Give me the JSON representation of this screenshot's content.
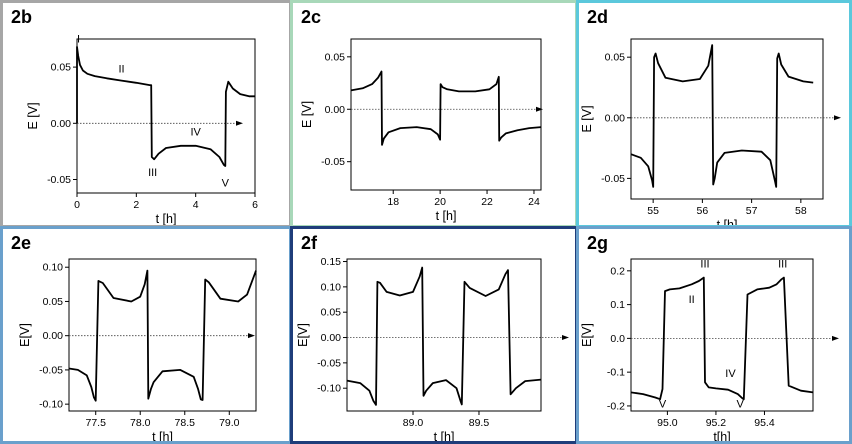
{
  "chart_data": [
    {
      "id": "2b",
      "type": "line",
      "border_color": "#a6a6a6",
      "xlabel": "t [h]",
      "ylabel": "E [V]",
      "xlim": [
        0,
        6
      ],
      "ylim": [
        -0.062,
        0.075
      ],
      "xticks": [
        0,
        2,
        4,
        6
      ],
      "xtick_labels": [
        "0",
        "2",
        "4",
        "6"
      ],
      "yticks": [
        0.05,
        0.0,
        -0.05
      ],
      "ytick_labels": [
        "0.05",
        "0.00",
        "-0.05"
      ],
      "series": [
        {
          "x": [
            0,
            0,
            0.04,
            0.1,
            0.2,
            0.35,
            0.6,
            1,
            1.5,
            2,
            2.45,
            2.5,
            2.52,
            2.6,
            2.75,
            3,
            3.5,
            4,
            4.5,
            4.8,
            4.95,
            5,
            5.02,
            5.1,
            5.25,
            5.5,
            5.8,
            6
          ],
          "y": [
            0,
            0.068,
            0.06,
            0.052,
            0.047,
            0.044,
            0.042,
            0.04,
            0.038,
            0.036,
            0.034,
            0.034,
            -0.03,
            -0.032,
            -0.027,
            -0.022,
            -0.02,
            -0.02,
            -0.023,
            -0.03,
            -0.037,
            -0.038,
            0.028,
            0.037,
            0.031,
            0.026,
            0.024,
            0.024
          ]
        }
      ],
      "annotations": [
        {
          "text": "I",
          "x": 0.05,
          "y": 0.072
        },
        {
          "text": "II",
          "x": 1.5,
          "y": 0.045
        },
        {
          "text": "IV",
          "x": 4.0,
          "y": -0.011
        },
        {
          "text": "III",
          "x": 2.55,
          "y": -0.047
        },
        {
          "text": "V",
          "x": 5.0,
          "y": -0.056
        }
      ]
    },
    {
      "id": "2c",
      "type": "line",
      "border_color": "#a8d8b9",
      "xlabel": "t [h]",
      "ylabel": "E [V]",
      "xlim": [
        16.2,
        24.3
      ],
      "ylim": [
        -0.077,
        0.067
      ],
      "xticks": [
        18,
        20,
        22,
        24
      ],
      "xtick_labels": [
        "18",
        "20",
        "22",
        "24"
      ],
      "yticks": [
        0.05,
        0.0,
        -0.05
      ],
      "ytick_labels": [
        "0.05",
        "0.00",
        "-0.05"
      ],
      "series": [
        {
          "x": [
            16.2,
            16.7,
            17.1,
            17.35,
            17.5,
            17.52,
            17.6,
            17.8,
            18.3,
            19,
            19.6,
            19.9,
            20,
            20.02,
            20.1,
            20.3,
            20.8,
            21.5,
            22.1,
            22.4,
            22.5,
            22.52,
            22.6,
            22.8,
            23.3,
            23.8,
            24.3
          ],
          "y": [
            0.018,
            0.02,
            0.024,
            0.03,
            0.036,
            -0.034,
            -0.028,
            -0.022,
            -0.018,
            -0.017,
            -0.019,
            -0.024,
            -0.029,
            0.024,
            0.021,
            0.019,
            0.017,
            0.017,
            0.019,
            0.024,
            0.031,
            -0.03,
            -0.027,
            -0.023,
            -0.02,
            -0.018,
            -0.017
          ]
        }
      ],
      "annotations": []
    },
    {
      "id": "2d",
      "type": "line",
      "border_color": "#5bc8dc",
      "xlabel": "t [h]",
      "ylabel": "E [V]",
      "xlim": [
        54.55,
        58.45
      ],
      "ylim": [
        -0.067,
        0.065
      ],
      "xticks": [
        55,
        56,
        57,
        58
      ],
      "xtick_labels": [
        "55",
        "56",
        "57",
        "58"
      ],
      "yticks": [
        0.05,
        0.0,
        -0.05
      ],
      "ytick_labels": [
        "0.05",
        "0.00",
        "-0.05"
      ],
      "series": [
        {
          "x": [
            54.55,
            54.75,
            54.9,
            54.98,
            55,
            55.02,
            55.05,
            55.1,
            55.25,
            55.6,
            55.95,
            56.12,
            56.2,
            56.22,
            56.25,
            56.3,
            56.45,
            56.8,
            57.2,
            57.38,
            57.48,
            57.5,
            57.52,
            57.55,
            57.6,
            57.75,
            58.05,
            58.25
          ],
          "y": [
            -0.03,
            -0.033,
            -0.04,
            -0.052,
            -0.057,
            0.05,
            0.053,
            0.045,
            0.033,
            0.03,
            0.032,
            0.043,
            0.06,
            -0.055,
            -0.05,
            -0.037,
            -0.029,
            -0.027,
            -0.028,
            -0.035,
            -0.053,
            -0.057,
            0.049,
            0.053,
            0.044,
            0.034,
            0.03,
            0.029
          ]
        }
      ],
      "annotations": []
    },
    {
      "id": "2e",
      "type": "line",
      "border_color": "#6aa0cc",
      "xlabel": "t [h]",
      "ylabel": "E[V]",
      "xlim": [
        77.2,
        79.3
      ],
      "ylim": [
        -0.11,
        0.112
      ],
      "xticks": [
        77.5,
        78.0,
        78.5,
        79.0
      ],
      "xtick_labels": [
        "77.5",
        "78.0",
        "78.5",
        "79.0"
      ],
      "yticks": [
        0.1,
        0.05,
        0.0,
        -0.05,
        -0.1
      ],
      "ytick_labels": [
        "0.10",
        "0.05",
        "0.00",
        "-0.05",
        "-0.10"
      ],
      "series": [
        {
          "x": [
            77.2,
            77.3,
            77.4,
            77.45,
            77.48,
            77.5,
            77.53,
            77.58,
            77.7,
            77.9,
            78.0,
            78.05,
            78.08,
            78.09,
            78.12,
            78.15,
            78.25,
            78.45,
            78.6,
            78.65,
            78.68,
            78.7,
            78.73,
            78.77,
            78.9,
            79.1,
            79.2,
            79.3
          ],
          "y": [
            -0.048,
            -0.05,
            -0.058,
            -0.075,
            -0.09,
            -0.095,
            0.08,
            0.077,
            0.055,
            0.05,
            0.057,
            0.075,
            0.095,
            -0.092,
            -0.078,
            -0.068,
            -0.052,
            -0.05,
            -0.06,
            -0.078,
            -0.093,
            -0.094,
            0.082,
            0.078,
            0.054,
            0.05,
            0.06,
            0.095
          ]
        }
      ],
      "annotations": []
    },
    {
      "id": "2f",
      "type": "line",
      "border_color": "#1f3d7a",
      "xlabel": "t [h]",
      "ylabel": "E[V]",
      "xlim": [
        88.5,
        89.97
      ],
      "ylim": [
        -0.145,
        0.155
      ],
      "xticks": [
        89.0,
        89.5
      ],
      "xtick_labels": [
        "89.0",
        "89.5"
      ],
      "yticks": [
        0.15,
        0.1,
        0.05,
        0.0,
        -0.05,
        -0.1
      ],
      "ytick_labels": [
        "0.15",
        "0.10",
        "0.05",
        "0.00",
        "-0.05",
        "-0.10"
      ],
      "series": [
        {
          "x": [
            88.5,
            88.6,
            88.67,
            88.7,
            88.72,
            88.73,
            88.75,
            88.8,
            88.9,
            89.0,
            89.05,
            89.07,
            89.08,
            89.1,
            89.15,
            89.25,
            89.33,
            89.36,
            89.37,
            89.39,
            89.43,
            89.55,
            89.65,
            89.7,
            89.72,
            89.74,
            89.78,
            89.85,
            89.97
          ],
          "y": [
            -0.085,
            -0.09,
            -0.105,
            -0.125,
            -0.133,
            0.11,
            0.108,
            0.09,
            0.083,
            0.09,
            0.12,
            0.138,
            -0.115,
            -0.105,
            -0.09,
            -0.084,
            -0.1,
            -0.125,
            -0.132,
            0.11,
            0.098,
            0.082,
            0.095,
            0.125,
            0.133,
            -0.112,
            -0.1,
            -0.086,
            -0.083
          ]
        }
      ],
      "annotations": []
    },
    {
      "id": "2g",
      "type": "line",
      "border_color": "#6aa0cc",
      "xlabel": "t[h]",
      "ylabel": "E[V]",
      "xlim": [
        94.85,
        95.6
      ],
      "ylim": [
        -0.215,
        0.235
      ],
      "xticks": [
        95.0,
        95.2,
        95.4
      ],
      "xtick_labels": [
        "95.0",
        "95.2",
        "95.4"
      ],
      "yticks": [
        0.2,
        0.1,
        0.0,
        -0.1,
        -0.2
      ],
      "ytick_labels": [
        "0.2",
        "0.1",
        "0.0",
        "-0.1",
        "-0.2"
      ],
      "series": [
        {
          "x": [
            94.85,
            94.9,
            94.95,
            94.97,
            94.98,
            94.99,
            95.01,
            95.05,
            95.1,
            95.13,
            95.15,
            95.155,
            95.17,
            95.2,
            95.25,
            95.29,
            95.31,
            95.315,
            95.33,
            95.37,
            95.42,
            95.45,
            95.47,
            95.48,
            95.5,
            95.55,
            95.6
          ],
          "y": [
            -0.16,
            -0.165,
            -0.175,
            -0.18,
            -0.15,
            0.14,
            0.145,
            0.148,
            0.16,
            0.17,
            0.18,
            -0.13,
            -0.145,
            -0.148,
            -0.152,
            -0.165,
            -0.178,
            -0.18,
            0.13,
            0.145,
            0.15,
            0.16,
            0.175,
            0.18,
            -0.14,
            -0.155,
            -0.16
          ]
        }
      ],
      "annotations": [
        {
          "text": "III",
          "x": 95.155,
          "y": 0.21
        },
        {
          "text": "III",
          "x": 95.475,
          "y": 0.21
        },
        {
          "text": "II",
          "x": 95.1,
          "y": 0.105
        },
        {
          "text": "IV",
          "x": 95.26,
          "y": -0.115
        },
        {
          "text": "V",
          "x": 94.98,
          "y": -0.205
        },
        {
          "text": "V",
          "x": 95.3,
          "y": -0.205
        }
      ]
    }
  ]
}
